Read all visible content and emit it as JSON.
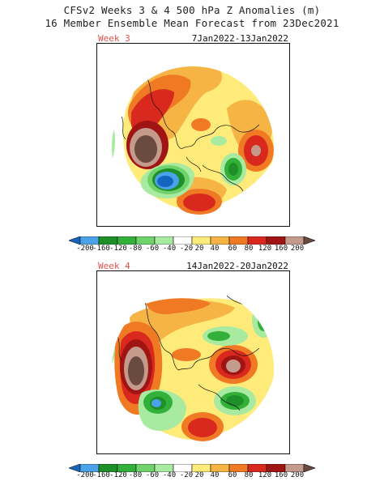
{
  "header": {
    "title_line1": "CFSv2 Weeks 3 & 4 500 hPa Z Anomalies (m)",
    "title_line2": "16 Member Ensemble Mean Forecast from 23Dec2021"
  },
  "panels": [
    {
      "week_label": "Week 3",
      "date_range": "7Jan2022-13Jan2022"
    },
    {
      "week_label": "Week 4",
      "date_range": "14Jan2022-20Jan2022"
    }
  ],
  "colorbar": {
    "levels": [
      "-200",
      "-160",
      "-120",
      "-80",
      "-60",
      "-40",
      "-20",
      "20",
      "40",
      "60",
      "80",
      "120",
      "160",
      "200"
    ],
    "colors": [
      "#1565c0",
      "#4aa3e8",
      "#1f8f2a",
      "#33b03a",
      "#6fd26a",
      "#a8eaa0",
      "#ffffff",
      "#ffeb7a",
      "#f5b443",
      "#f07a24",
      "#d9281e",
      "#a01414",
      "#c49a8c",
      "#6b4a40"
    ]
  },
  "map": {
    "projection": "polar-stereographic",
    "coastline_color": "#111111"
  }
}
